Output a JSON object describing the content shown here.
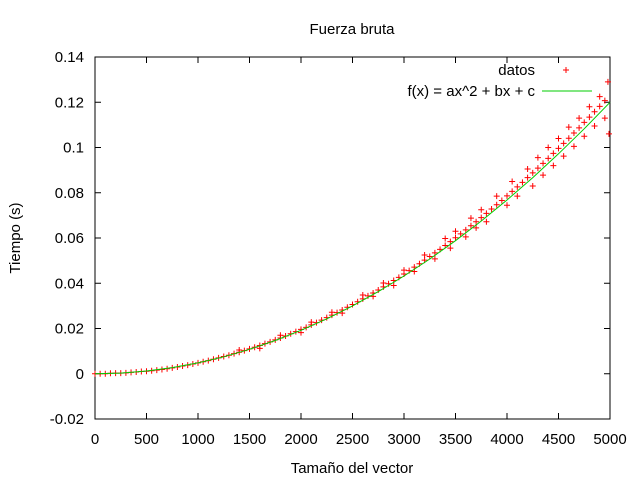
{
  "chart_data": {
    "type": "scatter",
    "title": "Fuerza bruta",
    "xlabel": "Tamaño del vector",
    "ylabel": "Tiempo (s)",
    "xlim": [
      0,
      5000
    ],
    "ylim": [
      -0.02,
      0.14
    ],
    "xticks": [
      0,
      500,
      1000,
      1500,
      2000,
      2500,
      3000,
      3500,
      4000,
      4500,
      5000
    ],
    "xtick_labels": [
      "0",
      "500",
      "1000",
      "1500",
      "2000",
      "2500",
      "3000",
      "3500",
      "4000",
      "4500",
      "5000"
    ],
    "yticks": [
      -0.02,
      0,
      0.02,
      0.04,
      0.06,
      0.08,
      0.1,
      0.12,
      0.14
    ],
    "ytick_labels": [
      "-0.02",
      "0",
      "0.02",
      "0.04",
      "0.06",
      "0.08",
      "0.1",
      "0.12",
      "0.14"
    ],
    "grid": false,
    "legend_position": "top-right",
    "series": [
      {
        "name": "datos",
        "style": "points",
        "marker": "+",
        "color": "#ff0000",
        "points": [
          [
            0,
            0.0
          ],
          [
            50,
            0.0
          ],
          [
            100,
            0.0
          ],
          [
            150,
            0.0002
          ],
          [
            200,
            0.0003
          ],
          [
            250,
            0.0003
          ],
          [
            300,
            0.0004
          ],
          [
            350,
            0.0006
          ],
          [
            400,
            0.0008
          ],
          [
            450,
            0.001
          ],
          [
            500,
            0.0011
          ],
          [
            550,
            0.0013
          ],
          [
            600,
            0.0016
          ],
          [
            650,
            0.0019
          ],
          [
            700,
            0.0022
          ],
          [
            750,
            0.0026
          ],
          [
            800,
            0.003
          ],
          [
            850,
            0.0034
          ],
          [
            900,
            0.0038
          ],
          [
            950,
            0.0043
          ],
          [
            1000,
            0.0048
          ],
          [
            1050,
            0.0053
          ],
          [
            1100,
            0.0058
          ],
          [
            1150,
            0.0064
          ],
          [
            1200,
            0.007
          ],
          [
            1250,
            0.0076
          ],
          [
            1300,
            0.0082
          ],
          [
            1350,
            0.0089
          ],
          [
            1400,
            0.0095
          ],
          [
            1450,
            0.0102
          ],
          [
            1500,
            0.011
          ],
          [
            1550,
            0.0117
          ],
          [
            1600,
            0.0125
          ],
          [
            1650,
            0.0133
          ],
          [
            1700,
            0.0141
          ],
          [
            1750,
            0.015
          ],
          [
            1800,
            0.0158
          ],
          [
            1850,
            0.0167
          ],
          [
            1900,
            0.0177
          ],
          [
            1950,
            0.0186
          ],
          [
            2000,
            0.0196
          ],
          [
            2050,
            0.0205
          ],
          [
            2100,
            0.0216
          ],
          [
            2150,
            0.0226
          ],
          [
            2200,
            0.0237
          ],
          [
            2250,
            0.0248
          ],
          [
            2300,
            0.0259
          ],
          [
            2350,
            0.027
          ],
          [
            2400,
            0.0282
          ],
          [
            2450,
            0.0294
          ],
          [
            2500,
            0.0306
          ],
          [
            2550,
            0.0318
          ],
          [
            2600,
            0.0331
          ],
          [
            2650,
            0.0344
          ],
          [
            2700,
            0.0357
          ],
          [
            2750,
            0.037
          ],
          [
            2800,
            0.0384
          ],
          [
            2850,
            0.0398
          ],
          [
            2900,
            0.0412
          ],
          [
            2950,
            0.0426
          ],
          [
            3000,
            0.0441
          ],
          [
            3050,
            0.0456
          ],
          [
            3100,
            0.0471
          ],
          [
            3150,
            0.0486
          ],
          [
            3200,
            0.0502
          ],
          [
            3250,
            0.0518
          ],
          [
            3300,
            0.0534
          ],
          [
            3350,
            0.055
          ],
          [
            3400,
            0.0567
          ],
          [
            3450,
            0.0584
          ],
          [
            3500,
            0.0601
          ],
          [
            3550,
            0.0618
          ],
          [
            3600,
            0.0636
          ],
          [
            3650,
            0.0654
          ],
          [
            3700,
            0.0672
          ],
          [
            3750,
            0.069
          ],
          [
            3800,
            0.0709
          ],
          [
            3850,
            0.0728
          ],
          [
            3900,
            0.0747
          ],
          [
            3950,
            0.0766
          ],
          [
            4000,
            0.0786
          ],
          [
            4050,
            0.0806
          ],
          [
            4100,
            0.0826
          ],
          [
            4150,
            0.0846
          ],
          [
            4200,
            0.0867
          ],
          [
            4250,
            0.0888
          ],
          [
            4300,
            0.0909
          ],
          [
            4350,
            0.093
          ],
          [
            4400,
            0.0952
          ],
          [
            4450,
            0.0974
          ],
          [
            4500,
            0.0996
          ],
          [
            4550,
            0.1018
          ],
          [
            4600,
            0.1041
          ],
          [
            4650,
            0.1064
          ],
          [
            4700,
            0.1087
          ],
          [
            4750,
            0.1111
          ],
          [
            4800,
            0.1134
          ],
          [
            4850,
            0.1158
          ],
          [
            4900,
            0.1182
          ],
          [
            4950,
            0.1207
          ],
          [
            1400,
            0.0105
          ],
          [
            1600,
            0.0112
          ],
          [
            1800,
            0.017
          ],
          [
            2000,
            0.0182
          ],
          [
            2100,
            0.0228
          ],
          [
            2300,
            0.0272
          ],
          [
            2400,
            0.0268
          ],
          [
            2600,
            0.0348
          ],
          [
            2700,
            0.0342
          ],
          [
            2800,
            0.0401
          ],
          [
            2900,
            0.039
          ],
          [
            3000,
            0.0458
          ],
          [
            3100,
            0.0452
          ],
          [
            3200,
            0.0525
          ],
          [
            3300,
            0.0508
          ],
          [
            3400,
            0.0598
          ],
          [
            3450,
            0.0555
          ],
          [
            3500,
            0.063
          ],
          [
            3600,
            0.0605
          ],
          [
            3650,
            0.0688
          ],
          [
            3700,
            0.0645
          ],
          [
            3750,
            0.0725
          ],
          [
            3800,
            0.0672
          ],
          [
            3900,
            0.0785
          ],
          [
            4000,
            0.0745
          ],
          [
            4050,
            0.085
          ],
          [
            4100,
            0.0785
          ],
          [
            4200,
            0.0905
          ],
          [
            4250,
            0.083
          ],
          [
            4300,
            0.0955
          ],
          [
            4350,
            0.0878
          ],
          [
            4400,
            0.1
          ],
          [
            4450,
            0.092
          ],
          [
            4500,
            0.104
          ],
          [
            4550,
            0.0962
          ],
          [
            4600,
            0.109
          ],
          [
            4650,
            0.1005
          ],
          [
            4700,
            0.113
          ],
          [
            4750,
            0.105
          ],
          [
            4800,
            0.118
          ],
          [
            4850,
            0.1095
          ],
          [
            4900,
            0.1225
          ],
          [
            4950,
            0.113
          ],
          [
            4980,
            0.129
          ],
          [
            4990,
            0.106
          ]
        ]
      },
      {
        "name": "f(x) = ax^2 + bx + c",
        "style": "line",
        "color": "#00cc00",
        "x": [
          0,
          250,
          500,
          750,
          1000,
          1250,
          1500,
          1750,
          2000,
          2250,
          2500,
          2750,
          3000,
          3250,
          3500,
          3750,
          4000,
          4250,
          4500,
          4750,
          5000
        ],
        "y": [
          0.0,
          0.0003,
          0.0012,
          0.0027,
          0.0048,
          0.0075,
          0.0108,
          0.0147,
          0.0192,
          0.0243,
          0.03,
          0.0363,
          0.0432,
          0.0507,
          0.0588,
          0.0675,
          0.0768,
          0.0867,
          0.0972,
          0.1083,
          0.12
        ]
      }
    ]
  }
}
